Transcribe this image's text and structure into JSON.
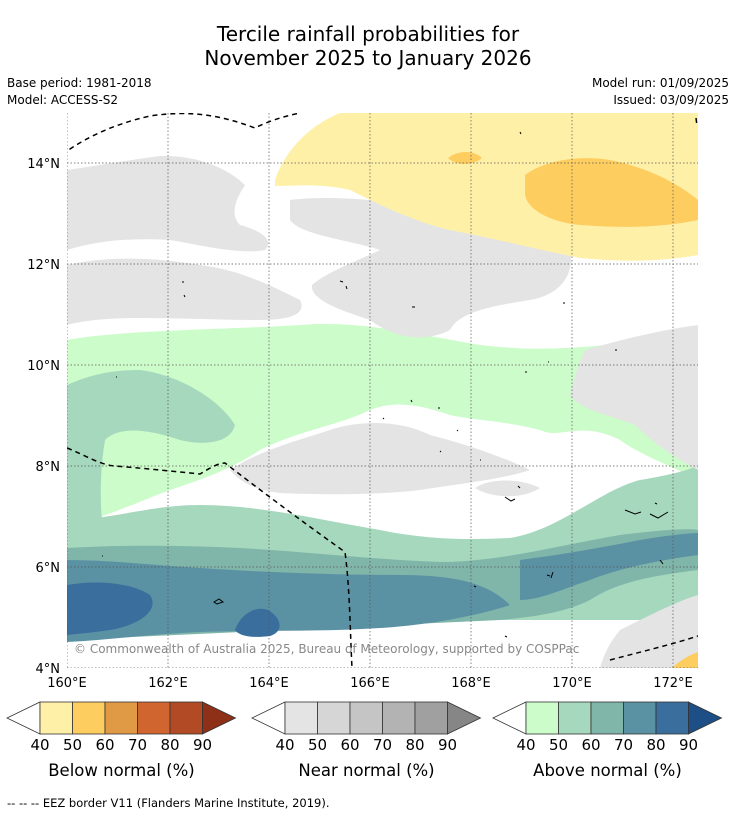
{
  "title": {
    "line1": "Tercile rainfall probabilities for",
    "line2": "November 2025 to January 2026"
  },
  "meta": {
    "base_period": "Base period: 1981-2018",
    "model": "Model: ACCESS-S2",
    "model_run": "Model run: 01/09/2025",
    "issued": "Issued: 03/09/2025"
  },
  "map": {
    "lat_labels": [
      "14°N",
      "12°N",
      "10°N",
      "8°N",
      "6°N",
      "4°N"
    ],
    "lon_labels": [
      "160°E",
      "162°E",
      "164°E",
      "166°E",
      "168°E",
      "170°E",
      "172°E"
    ],
    "credit": "© Commonwealth of Australia 2025, Bureau of Meteorology, supported by COSPPac"
  },
  "colorbars": [
    {
      "id": "below",
      "label": "Below normal (%)",
      "ticks": [
        "40",
        "50",
        "60",
        "70",
        "80",
        "90"
      ],
      "colors": [
        "#fff0a8",
        "#fdcd60",
        "#e09a45",
        "#d0652f",
        "#b24a26",
        "#8e3018"
      ]
    },
    {
      "id": "near",
      "label": "Near normal (%)",
      "ticks": [
        "40",
        "50",
        "60",
        "70",
        "80",
        "90"
      ],
      "colors": [
        "#e4e4e4",
        "#d6d6d6",
        "#c5c5c5",
        "#b3b3b3",
        "#a0a0a0",
        "#868686"
      ]
    },
    {
      "id": "above",
      "label": "Above normal (%)",
      "ticks": [
        "40",
        "50",
        "60",
        "70",
        "80",
        "90"
      ],
      "colors": [
        "#ccfcca",
        "#a5d8bc",
        "#80b5aa",
        "#5a92a4",
        "#3a6e9c",
        "#1d4f86"
      ]
    }
  ],
  "footer": "--  --  -- EEZ border V11 (Flanders Marine Institute, 2019)."
}
